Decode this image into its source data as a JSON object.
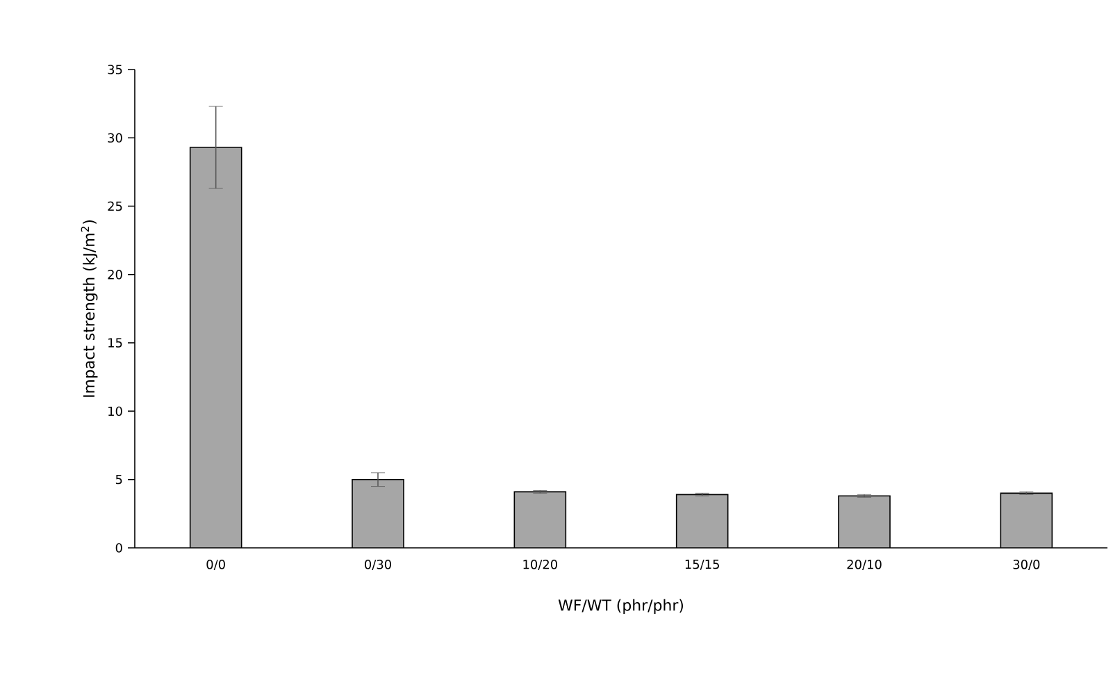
{
  "chart_data": {
    "type": "bar",
    "xlabel": "WF/WT (phr/phr)",
    "ylabel": "Impact strength (kJ/m$^{2}$)",
    "categories": [
      "0/0",
      "0/30",
      "10/20",
      "15/15",
      "20/10",
      "30/0"
    ],
    "values": [
      29.3,
      5.0,
      4.1,
      3.9,
      3.8,
      4.0
    ],
    "errors": [
      3.0,
      0.5,
      0.1,
      0.1,
      0.1,
      0.1
    ],
    "color": "#a6a6a6",
    "ylim": [
      0,
      35
    ],
    "yticks": [
      0,
      5,
      10,
      15,
      20,
      25,
      30,
      35
    ],
    "grid": false
  }
}
